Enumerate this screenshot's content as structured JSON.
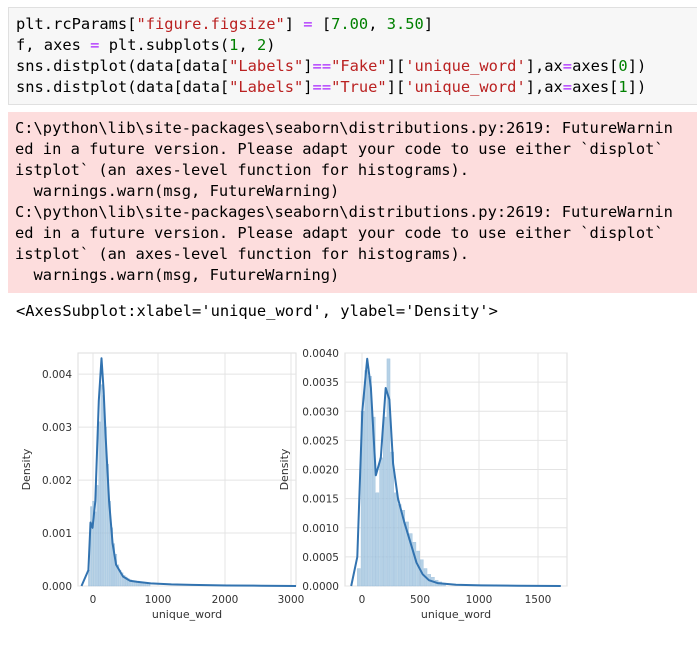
{
  "code_cell": {
    "line1": {
      "a": "plt.rcParams[",
      "b": "\"figure.figsize\"",
      "c": "] ",
      "d": "=",
      "e": " [",
      "f": "7.00",
      "g": ", ",
      "h": "3.50",
      "i": "]"
    },
    "line2": {
      "a": "f, axes ",
      "b": "=",
      "c": " plt.subplots(",
      "d": "1",
      "e": ", ",
      "f": "2",
      "g": ")"
    },
    "line3": {
      "a": "sns.distplot(data[data[",
      "b": "\"Labels\"",
      "c": "]",
      "d": "==",
      "e": "\"Fake\"",
      "f": "][",
      "g": "'unique_word'",
      "h": "],ax",
      "i": "=",
      "j": "axes[",
      "k": "0",
      "l": "])"
    },
    "line4": {
      "a": "sns.distplot(data[data[",
      "b": "\"Labels\"",
      "c": "]",
      "d": "==",
      "e": "\"True\"",
      "f": "][",
      "g": "'unique_word'",
      "h": "],ax",
      "i": "=",
      "j": "axes[",
      "k": "1",
      "l": "])"
    }
  },
  "stderr_lines": [
    "C:\\python\\lib\\site-packages\\seaborn\\distributions.py:2619: FutureWarnin",
    "ed in a future version. Please adapt your code to use either `displot`",
    "istplot` (an axes-level function for histograms).",
    "  warnings.warn(msg, FutureWarning)",
    "C:\\python\\lib\\site-packages\\seaborn\\distributions.py:2619: FutureWarnin",
    "ed in a future version. Please adapt your code to use either `displot`",
    "istplot` (an axes-level function for histograms).",
    "  warnings.warn(msg, FutureWarning)"
  ],
  "result_text": "<AxesSubplot:xlabel='unique_word', ylabel='Density'>",
  "chart_data": [
    {
      "type": "area",
      "xlabel": "unique_word",
      "ylabel": "Density",
      "xlim": [
        -150,
        3000
      ],
      "ylim": [
        0,
        0.0044
      ],
      "xticks": [
        "0",
        "1000",
        "2000",
        "3000"
      ],
      "yticks": [
        "0.000",
        "0.001",
        "0.002",
        "0.003",
        "0.004"
      ],
      "grid": true,
      "kde_x": [
        -100,
        0,
        30,
        60,
        100,
        150,
        190,
        220,
        250,
        300,
        350,
        400,
        500,
        600,
        700,
        900,
        1200,
        1500,
        2000,
        2500,
        3000
      ],
      "kde_y": [
        0,
        0.0003,
        0.0012,
        0.0011,
        0.0016,
        0.0035,
        0.0043,
        0.0037,
        0.0028,
        0.0016,
        0.0008,
        0.0004,
        0.00018,
        0.0001,
        8e-05,
        5e-05,
        3e-05,
        2e-05,
        1e-05,
        5e-06,
        0
      ],
      "bins_x": [
        0,
        30,
        60,
        90,
        120,
        150,
        180,
        210,
        240,
        270,
        300,
        330,
        360,
        390,
        420,
        450,
        480,
        510,
        540,
        570,
        600,
        630,
        660,
        690,
        720,
        750,
        780,
        810,
        840,
        870
      ],
      "bins_y": [
        0.0003,
        0.0015,
        0.0016,
        0.0014,
        0.0019,
        0.0031,
        0.0038,
        0.0036,
        0.003,
        0.0023,
        0.0016,
        0.0011,
        0.0008,
        0.0006,
        0.0004,
        0.0003,
        0.00025,
        0.0002,
        0.00017,
        0.00014,
        0.00012,
        0.0001,
        9e-05,
        8e-05,
        7e-05,
        6e-05,
        5e-05,
        4e-05,
        4e-05,
        3e-05
      ]
    },
    {
      "type": "area",
      "xlabel": "unique_word",
      "ylabel": "Density",
      "xlim": [
        -100,
        1700
      ],
      "ylim": [
        0,
        0.004
      ],
      "xticks": [
        "0",
        "500",
        "1000",
        "1500"
      ],
      "yticks": [
        "0.0000",
        "0.0005",
        "0.0010",
        "0.0015",
        "0.0020",
        "0.0025",
        "0.0030",
        "0.0035",
        "0.0040"
      ],
      "grid": true,
      "kde_x": [
        -50,
        0,
        40,
        80,
        110,
        150,
        190,
        230,
        260,
        290,
        330,
        380,
        430,
        480,
        530,
        580,
        650,
        800,
        1000,
        1300,
        1650
      ],
      "kde_y": [
        0,
        0.0005,
        0.003,
        0.0039,
        0.0034,
        0.0019,
        0.0022,
        0.0034,
        0.0032,
        0.0021,
        0.0015,
        0.0011,
        0.00075,
        0.0004,
        0.0002,
        0.0001,
        5e-05,
        2e-05,
        1e-05,
        5e-06,
        0
      ],
      "bins_x": [
        0,
        30,
        60,
        90,
        120,
        150,
        180,
        210,
        240,
        270,
        300,
        330,
        360,
        390,
        420,
        450,
        480,
        510,
        540,
        570,
        600,
        630,
        660,
        690
      ],
      "bins_y": [
        0.0003,
        0.003,
        0.0037,
        0.0036,
        0.0029,
        0.0016,
        0.0022,
        0.0029,
        0.0039,
        0.0023,
        0.0016,
        0.0014,
        0.0013,
        0.0011,
        0.0009,
        0.00075,
        0.0006,
        0.00045,
        0.0003,
        0.0002,
        0.00015,
        0.0001,
        7e-05,
        5e-05
      ]
    }
  ],
  "colors": {
    "kde": "#3273b0",
    "bar_fill": "#a9c9e2",
    "bar_edge": "#8db5d6",
    "grid": "#e4e4e4",
    "axis_text": "#333333"
  }
}
